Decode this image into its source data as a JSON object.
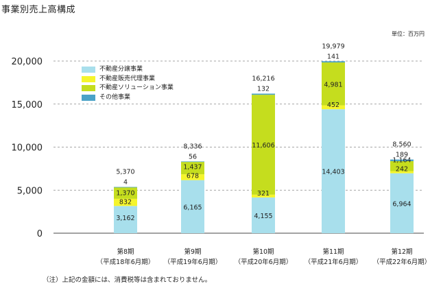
{
  "page": {
    "title": "事業別売上高構成",
    "unit": "単位：百万円",
    "note": "（注）上記の金額には、消費税等は含まれておりません。"
  },
  "colors": {
    "distribution": "#a8dfec",
    "sales_agency": "#f5f52c",
    "solution": "#c5dd1e",
    "other": "#4aa2c7"
  },
  "chart_data": {
    "type": "bar",
    "stacked": true,
    "categories": [
      "第8期",
      "第9期",
      "第10期",
      "第11期",
      "第12期"
    ],
    "category_sublabels": [
      "（平成18年6月期）",
      "（平成19年6月期）",
      "（平成20年6月期）",
      "（平成21年6月期）",
      "（平成22年6月期）"
    ],
    "series": [
      {
        "name": "不動産分譲事業",
        "color_key": "distribution",
        "values": [
          3162,
          6165,
          4155,
          14403,
          6964
        ],
        "labels": [
          "3,162",
          "6,165",
          "4,155",
          "14,403",
          "6,964"
        ]
      },
      {
        "name": "不動産販売代理事業",
        "color_key": "sales_agency",
        "values": [
          832,
          678,
          321,
          452,
          242
        ],
        "labels": [
          "832",
          "678",
          "321",
          "452",
          "242"
        ]
      },
      {
        "name": "不動産ソリューション事業",
        "color_key": "solution",
        "values": [
          1370,
          1437,
          11606,
          4981,
          1164
        ],
        "labels": [
          "1,370",
          "1,437",
          "11,606",
          "4,981",
          "1,164"
        ]
      },
      {
        "name": "その他事業",
        "color_key": "other",
        "values": [
          4,
          56,
          132,
          141,
          189
        ],
        "labels": [
          "4",
          "56",
          "132",
          "141",
          "189"
        ]
      }
    ],
    "totals": [
      5370,
      8336,
      16216,
      19979,
      8560
    ],
    "total_labels": [
      "5,370",
      "8,336",
      "16,216",
      "19,979",
      "8,560"
    ],
    "y_ticks": [
      0,
      5000,
      10000,
      15000,
      20000
    ],
    "y_tick_labels": [
      "0",
      "5,000",
      "10,000",
      "15,000",
      "20,000"
    ],
    "ylim": [
      0,
      20000
    ],
    "grid": true,
    "legend_position": "top-left"
  }
}
